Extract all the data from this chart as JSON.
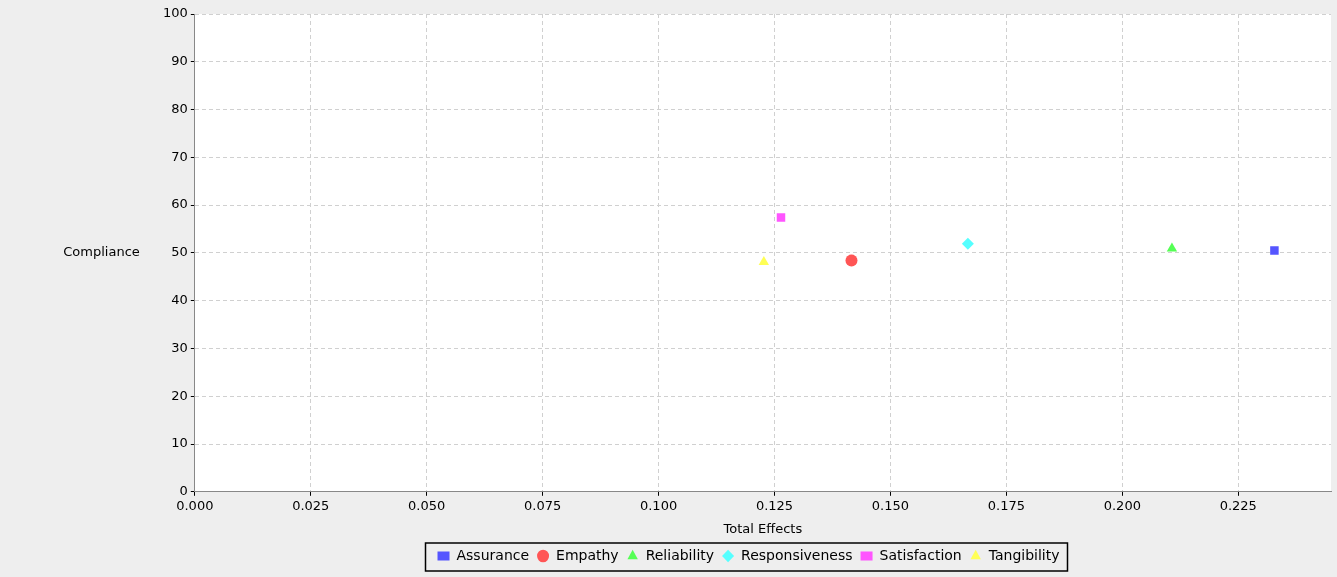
{
  "chart_data": {
    "type": "scatter",
    "xlabel": "Total Effects",
    "ylabel": "Compliance",
    "xlim": [
      0,
      0.245
    ],
    "xticks": [
      {
        "value": 0,
        "label": "0.000"
      },
      {
        "value": 0.025,
        "label": "0.025"
      },
      {
        "value": 0.05,
        "label": "0.050"
      },
      {
        "value": 0.075,
        "label": "0.075"
      },
      {
        "value": 0.1,
        "label": "0.100"
      },
      {
        "value": 0.125,
        "label": "0.125"
      },
      {
        "value": 0.15,
        "label": "0.150"
      },
      {
        "value": 0.175,
        "label": "0.175"
      },
      {
        "value": 0.2,
        "label": "0.200"
      },
      {
        "value": 0.225,
        "label": "0.225"
      }
    ],
    "ylim": [
      0,
      100
    ],
    "yticks": [
      0,
      10,
      20,
      30,
      40,
      50,
      60,
      70,
      80,
      90,
      100
    ],
    "grid": true,
    "legend": "bottom",
    "series": [
      {
        "name": "Assurance",
        "color": "#5555ff",
        "marker": "square",
        "x": [
          0.2328
        ],
        "values": [
          50.5
        ]
      },
      {
        "name": "Empathy",
        "color": "#ff5555",
        "marker": "circle",
        "x": [
          0.1416
        ],
        "values": [
          48.4
        ]
      },
      {
        "name": "Reliability",
        "color": "#55ff55",
        "marker": "triangle",
        "x": [
          0.2107
        ],
        "values": [
          50.9
        ]
      },
      {
        "name": "Responsiveness",
        "color": "#55ffff",
        "marker": "diamond",
        "x": [
          0.1667
        ],
        "values": [
          51.9
        ]
      },
      {
        "name": "Satisfaction",
        "color": "#ff55ff",
        "marker": "square",
        "x": [
          0.1264
        ],
        "values": [
          57.4
        ]
      },
      {
        "name": "Tangibility",
        "color": "#ffff55",
        "marker": "triangle",
        "x": [
          0.1227
        ],
        "values": [
          48.1
        ]
      }
    ]
  }
}
